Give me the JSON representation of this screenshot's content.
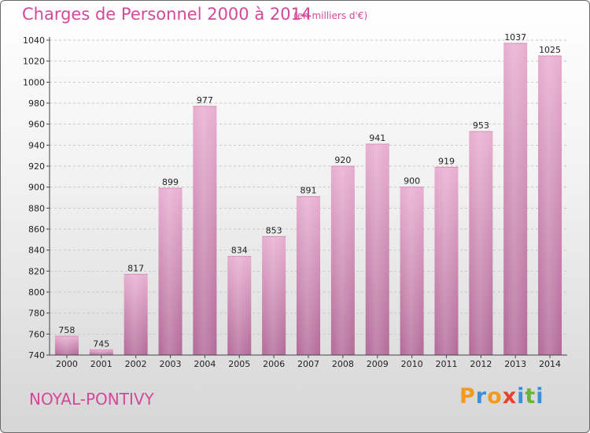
{
  "header": {
    "title": "Charges de Personnel 2000 à 2014",
    "subtitle": "(en milliers d'€)"
  },
  "footer": {
    "city": "NOYAL-PONTIVY",
    "logo": [
      "P",
      "r",
      "o",
      "x",
      "i",
      "t",
      "i"
    ],
    "logo_colors": [
      "#f29a1e",
      "#3f8fd8",
      "#f29a1e",
      "#e8422f",
      "#3f8fd8",
      "#6bb33a",
      "#3f8fd8"
    ]
  },
  "colors": {
    "title": "#d4489a",
    "bar_top": "#e8aed0",
    "bar_bottom": "#b26a98"
  },
  "chart_data": {
    "type": "bar",
    "categories": [
      "2000",
      "2001",
      "2002",
      "2003",
      "2004",
      "2005",
      "2006",
      "2007",
      "2008",
      "2009",
      "2010",
      "2011",
      "2012",
      "2013",
      "2014"
    ],
    "values": [
      758,
      745,
      817,
      899,
      977,
      834,
      853,
      891,
      920,
      941,
      900,
      919,
      953,
      1037,
      1025
    ],
    "ylim": [
      740,
      1040
    ],
    "yticks": [
      740,
      760,
      780,
      800,
      820,
      840,
      860,
      880,
      900,
      920,
      940,
      960,
      980,
      1000,
      1020,
      1040
    ],
    "grid": true
  }
}
